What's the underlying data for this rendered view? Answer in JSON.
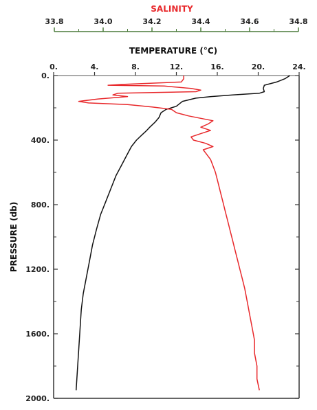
{
  "chart_data": {
    "type": "line",
    "title": "",
    "ylabel": "PRESSURE (db)",
    "ylim": [
      2000,
      0
    ],
    "y_ticks": [
      "0.",
      "400.",
      "800.",
      "1200.",
      "1600.",
      "2000."
    ],
    "y_tick_values": [
      0,
      400,
      800,
      1200,
      1600,
      2000
    ],
    "x_axes": [
      {
        "name": "TEMPERATURE (°C)",
        "label": "TEMPERATURE (°C)",
        "range": [
          0,
          24
        ],
        "ticks": [
          "0.",
          "4.",
          "8.",
          "12.",
          "16.",
          "20.",
          "24."
        ],
        "tick_values": [
          0,
          4,
          8,
          12,
          16,
          20,
          24
        ]
      },
      {
        "name": "SALINITY",
        "label": "SALINITY",
        "range": [
          33.8,
          34.8
        ],
        "ticks": [
          "33.8",
          "34.0",
          "34.2",
          "34.4",
          "34.6",
          "34.8"
        ],
        "tick_values": [
          33.8,
          34.0,
          34.2,
          34.4,
          34.6,
          34.8
        ]
      }
    ],
    "series": [
      {
        "name": "TEMPERATURE (°C)",
        "axis": "temperature",
        "color": "#111111",
        "points": [
          [
            23.1,
            0
          ],
          [
            22.6,
            20
          ],
          [
            21.8,
            40
          ],
          [
            20.6,
            60
          ],
          [
            20.5,
            80
          ],
          [
            20.6,
            100
          ],
          [
            20.1,
            110
          ],
          [
            17.5,
            120
          ],
          [
            15.4,
            130
          ],
          [
            13.9,
            140
          ],
          [
            12.6,
            160
          ],
          [
            12.0,
            190
          ],
          [
            11.0,
            210
          ],
          [
            10.5,
            230
          ],
          [
            10.3,
            260
          ],
          [
            9.9,
            290
          ],
          [
            9.4,
            320
          ],
          [
            9.1,
            340
          ],
          [
            8.6,
            370
          ],
          [
            8.1,
            400
          ],
          [
            7.6,
            440
          ],
          [
            7.1,
            500
          ],
          [
            6.6,
            560
          ],
          [
            6.1,
            620
          ],
          [
            5.6,
            700
          ],
          [
            5.1,
            780
          ],
          [
            4.6,
            860
          ],
          [
            4.2,
            950
          ],
          [
            3.8,
            1050
          ],
          [
            3.5,
            1150
          ],
          [
            3.2,
            1250
          ],
          [
            2.9,
            1350
          ],
          [
            2.7,
            1450
          ],
          [
            2.6,
            1550
          ],
          [
            2.5,
            1650
          ],
          [
            2.4,
            1750
          ],
          [
            2.3,
            1850
          ],
          [
            2.2,
            1950
          ]
        ]
      },
      {
        "name": "SALINITY",
        "axis": "salinity",
        "color": "#e8282b",
        "points": [
          [
            34.33,
            0
          ],
          [
            34.33,
            20
          ],
          [
            34.32,
            40
          ],
          [
            34.08,
            55
          ],
          [
            34.02,
            60
          ],
          [
            34.25,
            65
          ],
          [
            34.36,
            80
          ],
          [
            34.4,
            90
          ],
          [
            34.38,
            100
          ],
          [
            34.06,
            110
          ],
          [
            34.04,
            120
          ],
          [
            34.1,
            130
          ],
          [
            33.98,
            145
          ],
          [
            33.9,
            160
          ],
          [
            33.94,
            170
          ],
          [
            34.1,
            180
          ],
          [
            34.2,
            195
          ],
          [
            34.28,
            210
          ],
          [
            34.3,
            230
          ],
          [
            34.35,
            250
          ],
          [
            34.4,
            265
          ],
          [
            34.45,
            280
          ],
          [
            34.43,
            300
          ],
          [
            34.4,
            320
          ],
          [
            34.44,
            340
          ],
          [
            34.4,
            360
          ],
          [
            34.36,
            380
          ],
          [
            34.37,
            400
          ],
          [
            34.42,
            420
          ],
          [
            34.45,
            440
          ],
          [
            34.41,
            460
          ],
          [
            34.42,
            480
          ],
          [
            34.44,
            520
          ],
          [
            34.45,
            560
          ],
          [
            34.46,
            600
          ],
          [
            34.47,
            660
          ],
          [
            34.48,
            720
          ],
          [
            34.49,
            780
          ],
          [
            34.5,
            840
          ],
          [
            34.51,
            900
          ],
          [
            34.52,
            960
          ],
          [
            34.53,
            1020
          ],
          [
            34.54,
            1080
          ],
          [
            34.55,
            1140
          ],
          [
            34.56,
            1200
          ],
          [
            34.57,
            1260
          ],
          [
            34.58,
            1320
          ],
          [
            34.59,
            1400
          ],
          [
            34.6,
            1480
          ],
          [
            34.61,
            1560
          ],
          [
            34.62,
            1640
          ],
          [
            34.62,
            1720
          ],
          [
            34.63,
            1800
          ],
          [
            34.63,
            1880
          ],
          [
            34.64,
            1950
          ]
        ]
      }
    ],
    "grid": false,
    "legend": "none"
  }
}
